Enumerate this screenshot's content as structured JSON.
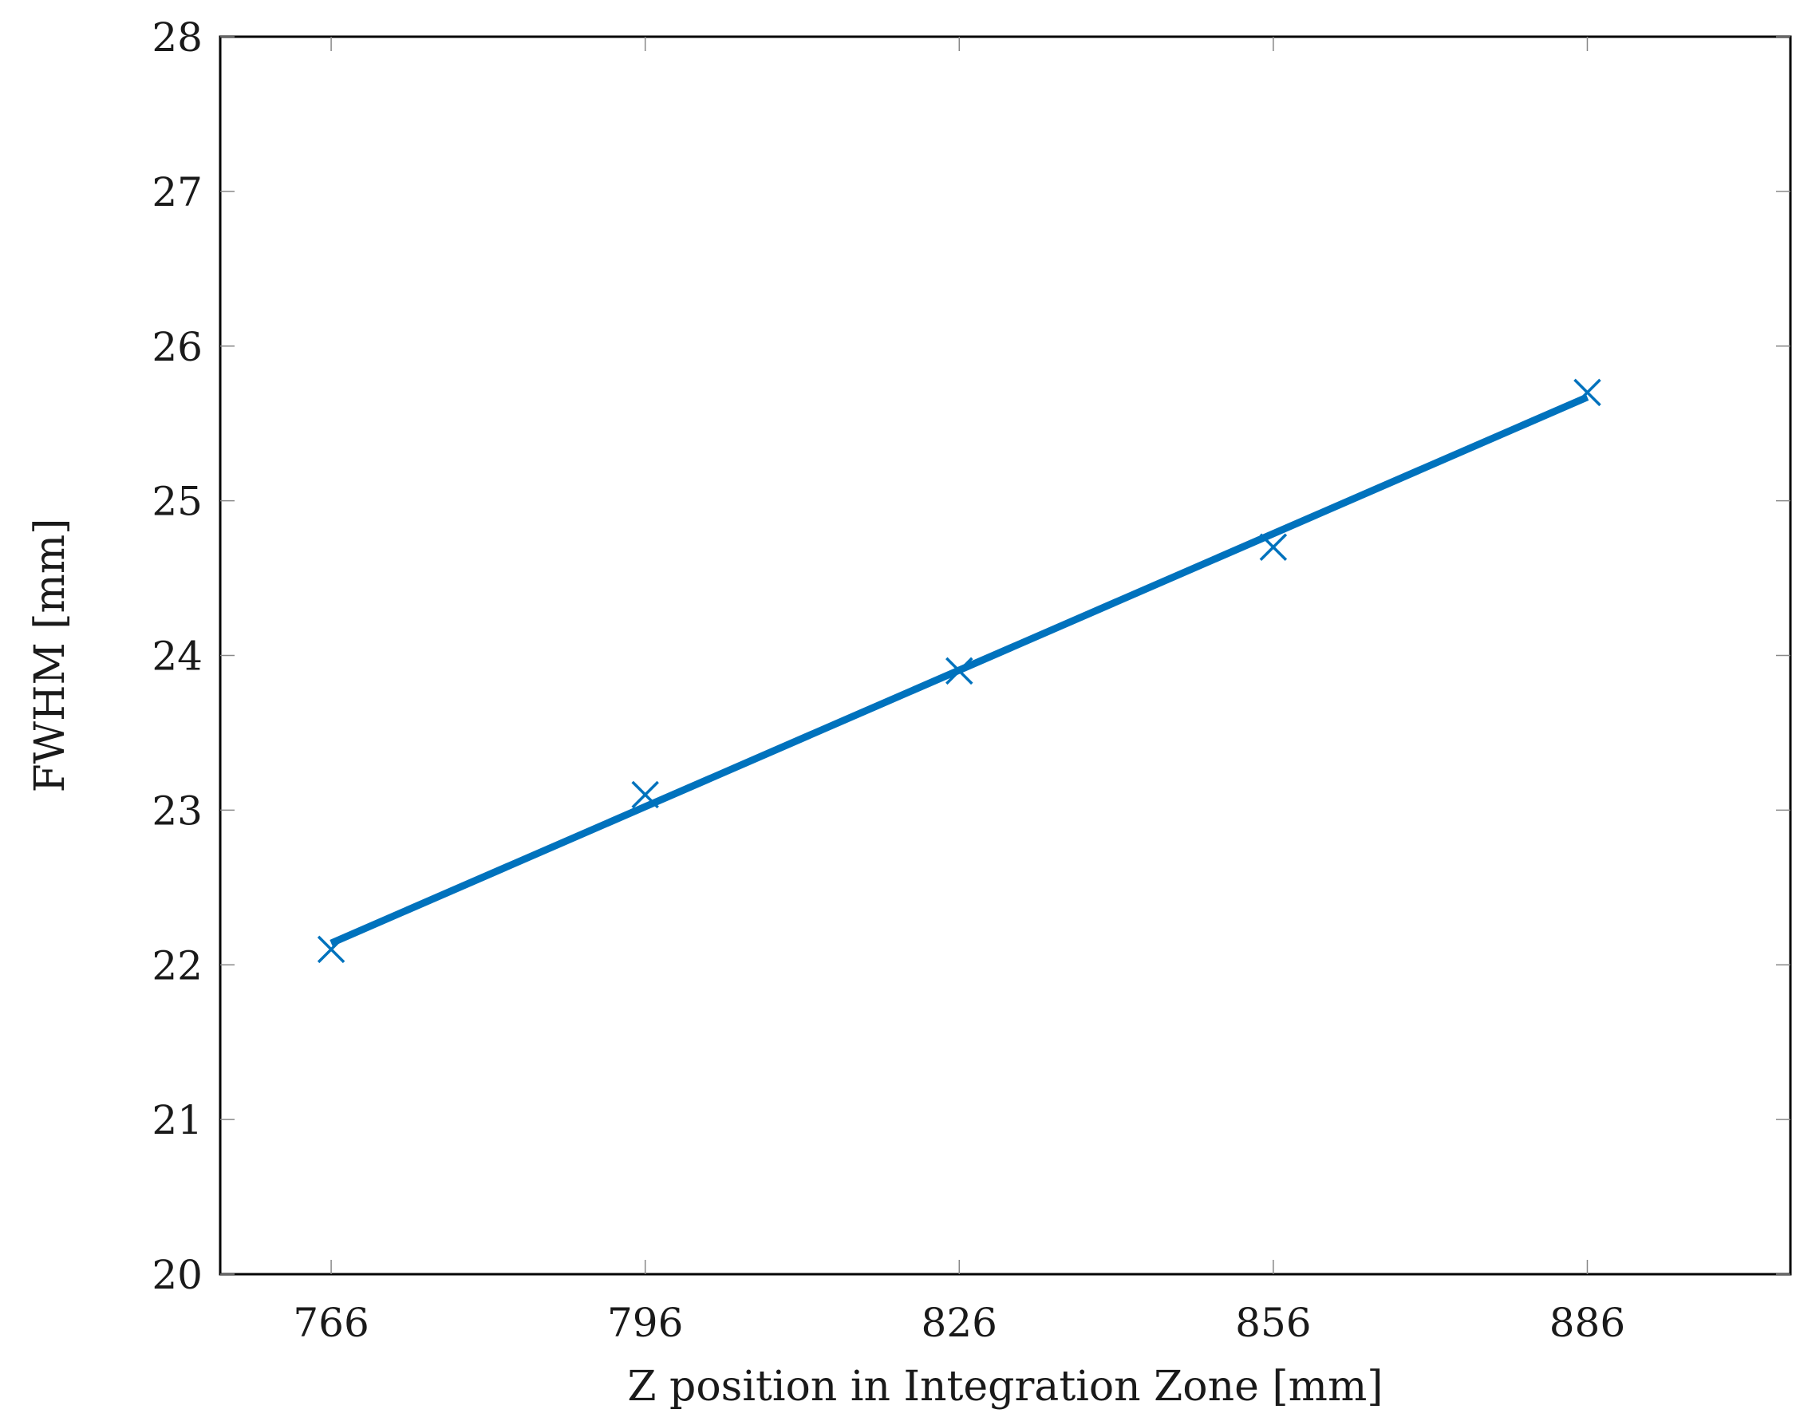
{
  "chart_data": {
    "type": "line",
    "title": "",
    "xlabel": "Z position in Integration Zone [mm]",
    "ylabel": "FWHM [mm]",
    "xlim": [
      755.4,
      905.4
    ],
    "ylim": [
      20,
      28
    ],
    "xticks": [
      766,
      796,
      826,
      856,
      886
    ],
    "yticks": [
      20,
      21,
      22,
      23,
      24,
      25,
      26,
      27,
      28
    ],
    "grid": false,
    "series": [
      {
        "kind": "fit-line",
        "color": "#0072bd",
        "x": [
          766,
          886
        ],
        "y": [
          22.14,
          25.67
        ]
      },
      {
        "kind": "markers",
        "marker": "x",
        "color": "#0072bd",
        "x": [
          766,
          796,
          826,
          856,
          886
        ],
        "y": [
          22.1,
          23.1,
          23.9,
          24.7,
          25.7
        ]
      }
    ]
  }
}
